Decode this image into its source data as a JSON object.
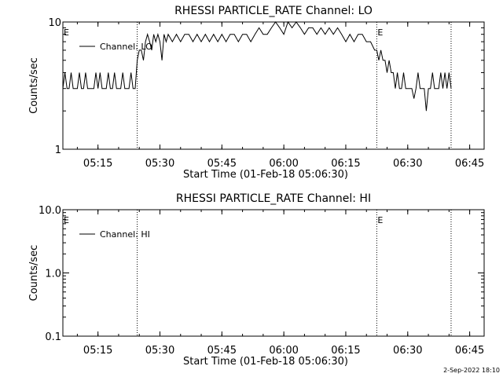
{
  "footer": {
    "timestamp": "2-Sep-2022 18:10"
  },
  "chart_data": [
    {
      "type": "line",
      "title": "RHESSI PARTICLE_RATE Channel: LO",
      "xlabel": "Start Time (01-Feb-18 05:06:30)",
      "ylabel": "Counts/sec",
      "yscale": "log",
      "ylim": [
        1,
        10
      ],
      "yticks": [
        "1",
        "10"
      ],
      "xlim": [
        "05:06:30",
        "06:48:30"
      ],
      "xticks": [
        "05:15",
        "05:30",
        "05:45",
        "06:00",
        "06:15",
        "06:30",
        "06:45"
      ],
      "legend": {
        "label": "Channel: LO",
        "position": "top-left"
      },
      "event_lines": [
        "05:24:30",
        "06:22:30",
        "06:40:30"
      ],
      "event_markers": [
        "E",
        "E"
      ],
      "series": [
        {
          "name": "Channel: LO",
          "x": [
            "05:06:30",
            "05:07:00",
            "05:07:30",
            "05:08:00",
            "05:08:30",
            "05:09:00",
            "05:09:30",
            "05:10:00",
            "05:10:30",
            "05:11:00",
            "05:11:30",
            "05:12:00",
            "05:12:30",
            "05:13:00",
            "05:13:30",
            "05:14:00",
            "05:14:30",
            "05:15:00",
            "05:15:30",
            "05:16:00",
            "05:16:30",
            "05:17:00",
            "05:17:30",
            "05:18:00",
            "05:18:30",
            "05:19:00",
            "05:19:30",
            "05:20:00",
            "05:20:30",
            "05:21:00",
            "05:21:30",
            "05:22:00",
            "05:22:30",
            "05:23:00",
            "05:23:30",
            "05:24:00",
            "05:24:30",
            "05:25:00",
            "05:25:30",
            "05:26:00",
            "05:26:30",
            "05:27:00",
            "05:27:30",
            "05:28:00",
            "05:28:30",
            "05:29:00",
            "05:29:30",
            "05:30:00",
            "05:30:30",
            "05:31:00",
            "05:31:30",
            "05:32:00",
            "05:33:00",
            "05:34:00",
            "05:35:00",
            "05:36:00",
            "05:37:00",
            "05:38:00",
            "05:39:00",
            "05:40:00",
            "05:41:00",
            "05:42:00",
            "05:43:00",
            "05:44:00",
            "05:45:00",
            "05:46:00",
            "05:47:00",
            "05:48:00",
            "05:49:00",
            "05:50:00",
            "05:51:00",
            "05:52:00",
            "05:53:00",
            "05:54:00",
            "05:55:00",
            "05:56:00",
            "05:57:00",
            "05:58:00",
            "05:59:00",
            "06:00:00",
            "06:01:00",
            "06:02:00",
            "06:03:00",
            "06:04:00",
            "06:05:00",
            "06:06:00",
            "06:07:00",
            "06:08:00",
            "06:09:00",
            "06:10:00",
            "06:11:00",
            "06:12:00",
            "06:13:00",
            "06:14:00",
            "06:15:00",
            "06:16:00",
            "06:17:00",
            "06:18:00",
            "06:19:00",
            "06:20:00",
            "06:21:00",
            "06:22:00",
            "06:22:30",
            "06:23:00",
            "06:23:30",
            "06:24:00",
            "06:24:30",
            "06:25:00",
            "06:25:30",
            "06:26:00",
            "06:26:30",
            "06:27:00",
            "06:27:30",
            "06:28:00",
            "06:28:30",
            "06:29:00",
            "06:29:30",
            "06:30:00",
            "06:30:30",
            "06:31:00",
            "06:31:30",
            "06:32:00",
            "06:32:30",
            "06:33:00",
            "06:33:30",
            "06:34:00",
            "06:34:30",
            "06:35:00",
            "06:35:30",
            "06:36:00",
            "06:36:30",
            "06:37:00",
            "06:37:30",
            "06:38:00",
            "06:38:30",
            "06:39:00",
            "06:39:30",
            "06:40:00",
            "06:40:30"
          ],
          "y": [
            3,
            4,
            3,
            3,
            4,
            3,
            3,
            3,
            4,
            3,
            3,
            4,
            3,
            3,
            3,
            3,
            4,
            3,
            4,
            3,
            3,
            3,
            4,
            3,
            3,
            4,
            3,
            3,
            3,
            4,
            3,
            3,
            3,
            4,
            3,
            3,
            5,
            6,
            6,
            5,
            7,
            8,
            7,
            6,
            8,
            7,
            8,
            7,
            5,
            8,
            7,
            8,
            7,
            8,
            7,
            8,
            8,
            7,
            8,
            7,
            8,
            7,
            8,
            7,
            8,
            7,
            8,
            8,
            7,
            8,
            8,
            7,
            8,
            9,
            8,
            8,
            9,
            10,
            9,
            8,
            10,
            9,
            10,
            9,
            8,
            9,
            9,
            8,
            9,
            8,
            9,
            8,
            9,
            8,
            7,
            8,
            7,
            8,
            8,
            7,
            7,
            6,
            6,
            5,
            6,
            5,
            5,
            4,
            5,
            4,
            4,
            3,
            4,
            3,
            3,
            4,
            3,
            3,
            3,
            3,
            2.5,
            3,
            4,
            3,
            3,
            3,
            2,
            3,
            3,
            4,
            3,
            3,
            3,
            4,
            3,
            4,
            3,
            4,
            3
          ]
        }
      ]
    },
    {
      "type": "line",
      "title": "RHESSI PARTICLE_RATE Channel: HI",
      "xlabel": "Start Time (01-Feb-18 05:06:30)",
      "ylabel": "Counts/sec",
      "yscale": "log",
      "ylim": [
        0.1,
        10
      ],
      "yticks": [
        "0.1",
        "1.0",
        "10.0"
      ],
      "xlim": [
        "05:06:30",
        "06:48:30"
      ],
      "xticks": [
        "05:15",
        "05:30",
        "05:45",
        "06:00",
        "06:15",
        "06:30",
        "06:45"
      ],
      "legend": {
        "label": "Channel: HI",
        "position": "top-left"
      },
      "event_lines": [
        "05:24:30",
        "06:22:30",
        "06:40:30"
      ],
      "event_markers": [
        "E",
        "E"
      ],
      "series": [
        {
          "name": "Channel: HI",
          "x": [],
          "y": []
        }
      ]
    }
  ]
}
